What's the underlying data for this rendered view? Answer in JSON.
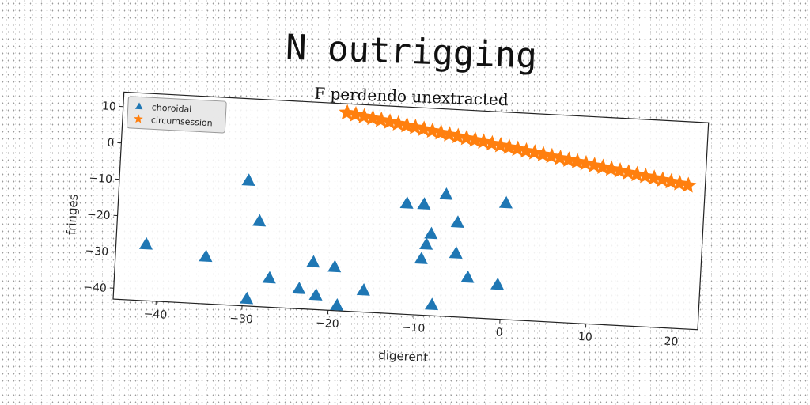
{
  "title": "N outrigging",
  "subtitle": "F perdendo unextracted",
  "chart_data": {
    "type": "scatter",
    "xlabel": "digerent",
    "ylabel": "fringes",
    "xlim": [
      -45,
      23
    ],
    "ylim": [
      -43,
      14
    ],
    "xticks": [
      -40,
      -30,
      -20,
      -10,
      0,
      10,
      20
    ],
    "yticks": [
      10,
      0,
      -10,
      -20,
      -30,
      -40
    ],
    "legend_position": "top-left",
    "grid": false,
    "series": [
      {
        "name": "choroidal",
        "marker": "triangle",
        "color": "#1f77b4",
        "x": [
          -41.5,
          -34.5,
          -30.0,
          -29.5,
          -28.5,
          -27.0,
          -23.5,
          -22.0,
          -21.5,
          -19.5,
          -19.0,
          -16.0,
          -11.5,
          -9.5,
          -9.5,
          -9.0,
          -8.5,
          -8.0,
          -7.0,
          -5.5,
          -5.5,
          -4.0,
          0.0,
          -0.5
        ],
        "y": [
          -27.5,
          -30.0,
          -8.5,
          -41.0,
          -19.5,
          -35.0,
          -37.5,
          -30.0,
          -39.0,
          -31.0,
          -41.5,
          -37.0,
          -12.5,
          -27.5,
          -12.5,
          -23.5,
          -20.5,
          -40.0,
          -9.5,
          -17.0,
          -25.5,
          -32.0,
          -11.0,
          -33.5
        ]
      },
      {
        "name": "circumsession",
        "marker": "star",
        "color": "#ff7f0e",
        "x": [
          -19.0,
          -18.0,
          -17.0,
          -16.0,
          -15.0,
          -14.0,
          -13.0,
          -12.0,
          -11.0,
          -10.0,
          -9.0,
          -8.0,
          -7.0,
          -6.0,
          -5.0,
          -4.0,
          -3.0,
          -2.0,
          -1.0,
          0.0,
          1.0,
          2.0,
          3.0,
          4.0,
          5.0,
          6.0,
          7.0,
          8.0,
          9.0,
          10.0,
          11.0,
          12.0,
          13.0,
          14.0,
          15.0,
          16.0,
          17.0,
          18.0,
          19.0,
          20.0,
          21.0
        ],
        "y": [
          11.5,
          11.12,
          10.75,
          10.38,
          10.0,
          9.62,
          9.25,
          8.88,
          8.5,
          8.12,
          7.75,
          7.38,
          7.0,
          6.62,
          6.25,
          5.88,
          5.5,
          5.12,
          4.75,
          4.38,
          4.0,
          3.62,
          3.25,
          2.88,
          2.5,
          2.12,
          1.75,
          1.38,
          1.0,
          0.62,
          0.25,
          -0.12,
          -0.5,
          -0.88,
          -1.25,
          -1.62,
          -2.0,
          -2.38,
          -2.75,
          -3.12,
          -3.5
        ]
      }
    ]
  }
}
